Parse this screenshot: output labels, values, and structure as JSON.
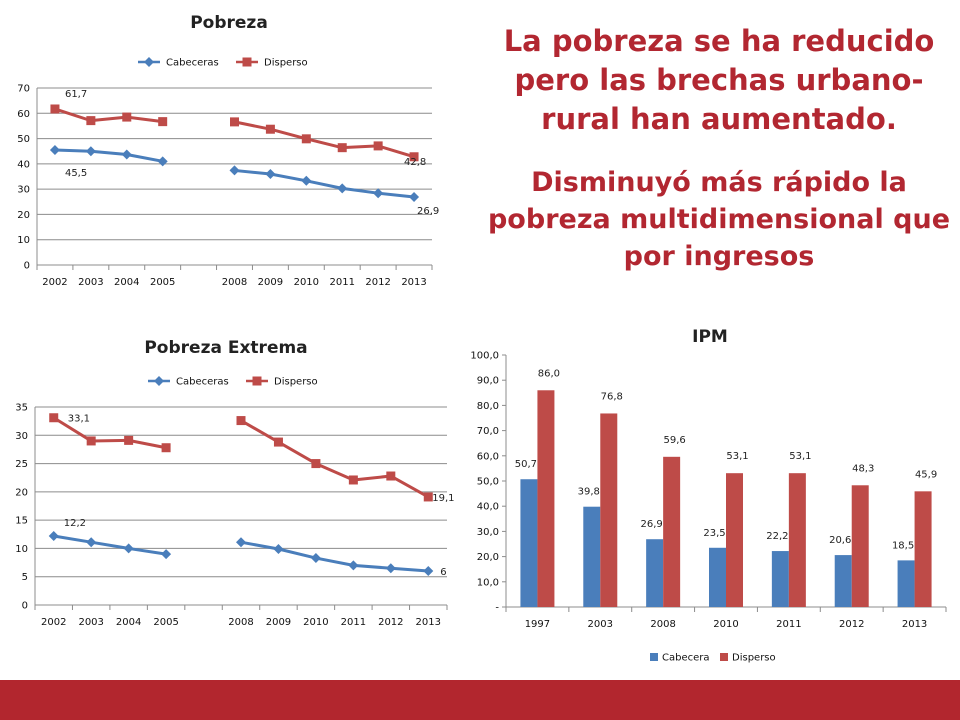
{
  "headline": {
    "line1": "La pobreza se ha reducido pero las brechas urbano-rural han aumentado.",
    "line2": "Disminuyó más rápido la pobreza multidimensional que por ingresos"
  },
  "colors": {
    "cabeceras": "#4a7ebb",
    "disperso": "#be4b48",
    "accent": "#b22731"
  },
  "chart_data": [
    {
      "id": "pobreza",
      "type": "line",
      "title": "Pobreza",
      "categories": [
        "2002",
        "2003",
        "2004",
        "2005",
        "",
        "2008",
        "2009",
        "2010",
        "2011",
        "2012",
        "2013"
      ],
      "ylim": [
        0,
        70
      ],
      "yticks": [
        "0",
        "10",
        "20",
        "30",
        "40",
        "50",
        "60",
        "70"
      ],
      "grid": true,
      "legend": "top",
      "series": [
        {
          "name": "Cabeceras",
          "color": "#4a7ebb",
          "marker": "diamond",
          "values": [
            45.5,
            45.0,
            43.7,
            41.0,
            null,
            37.4,
            36.0,
            33.3,
            30.3,
            28.4,
            26.9
          ],
          "labels": [
            "45,5",
            null,
            null,
            null,
            null,
            null,
            null,
            null,
            null,
            null,
            "26,9"
          ]
        },
        {
          "name": "Disperso",
          "color": "#be4b48",
          "marker": "square",
          "values": [
            61.7,
            57.1,
            58.5,
            56.7,
            null,
            56.6,
            53.7,
            49.9,
            46.4,
            47.1,
            42.8
          ],
          "labels": [
            "61,7",
            null,
            null,
            null,
            null,
            null,
            null,
            null,
            null,
            null,
            "42,8"
          ]
        }
      ]
    },
    {
      "id": "extrema",
      "type": "line",
      "title": "Pobreza Extrema",
      "categories": [
        "2002",
        "2003",
        "2004",
        "2005",
        "",
        "2008",
        "2009",
        "2010",
        "2011",
        "2012",
        "2013"
      ],
      "ylim": [
        0,
        35
      ],
      "yticks": [
        "0",
        "5",
        "10",
        "15",
        "20",
        "25",
        "30",
        "35"
      ],
      "grid": true,
      "legend": "top",
      "series": [
        {
          "name": "Cabeceras",
          "color": "#4a7ebb",
          "marker": "diamond",
          "values": [
            12.2,
            11.1,
            10.0,
            9.0,
            null,
            11.1,
            9.9,
            8.3,
            7.0,
            6.5,
            6.0
          ],
          "labels": [
            "12,2",
            null,
            null,
            null,
            null,
            null,
            null,
            null,
            null,
            null,
            "6"
          ]
        },
        {
          "name": "Disperso",
          "color": "#be4b48",
          "marker": "square",
          "values": [
            33.1,
            29.0,
            29.1,
            27.8,
            null,
            32.6,
            28.8,
            25.0,
            22.1,
            22.8,
            19.1
          ],
          "labels": [
            "33,1",
            null,
            null,
            null,
            null,
            null,
            null,
            null,
            null,
            null,
            "19,1"
          ]
        }
      ]
    },
    {
      "id": "ipm",
      "type": "bar",
      "title": "IPM",
      "categories": [
        "1997",
        "2003",
        "2008",
        "2010",
        "2011",
        "2012",
        "2013"
      ],
      "ylim": [
        0,
        100
      ],
      "yticks": [
        "-",
        "10,0",
        "20,0",
        "30,0",
        "40,0",
        "50,0",
        "60,0",
        "70,0",
        "80,0",
        "90,0",
        "100,0"
      ],
      "grid": false,
      "legend": "bottom",
      "series": [
        {
          "name": "Cabecera",
          "color": "#4a7ebb",
          "values": [
            50.7,
            39.8,
            26.9,
            23.5,
            22.2,
            20.6,
            18.5
          ],
          "labels": [
            "50,7",
            "39,8",
            "26,9",
            "23,5",
            "22,2",
            "20,6",
            "18,5"
          ]
        },
        {
          "name": "Disperso",
          "color": "#be4b48",
          "values": [
            86.0,
            76.8,
            59.6,
            53.1,
            53.1,
            48.3,
            45.9
          ],
          "labels": [
            "86,0",
            "76,8",
            "59,6",
            "53,1",
            "53,1",
            "48,3",
            "45,9"
          ]
        }
      ]
    }
  ]
}
